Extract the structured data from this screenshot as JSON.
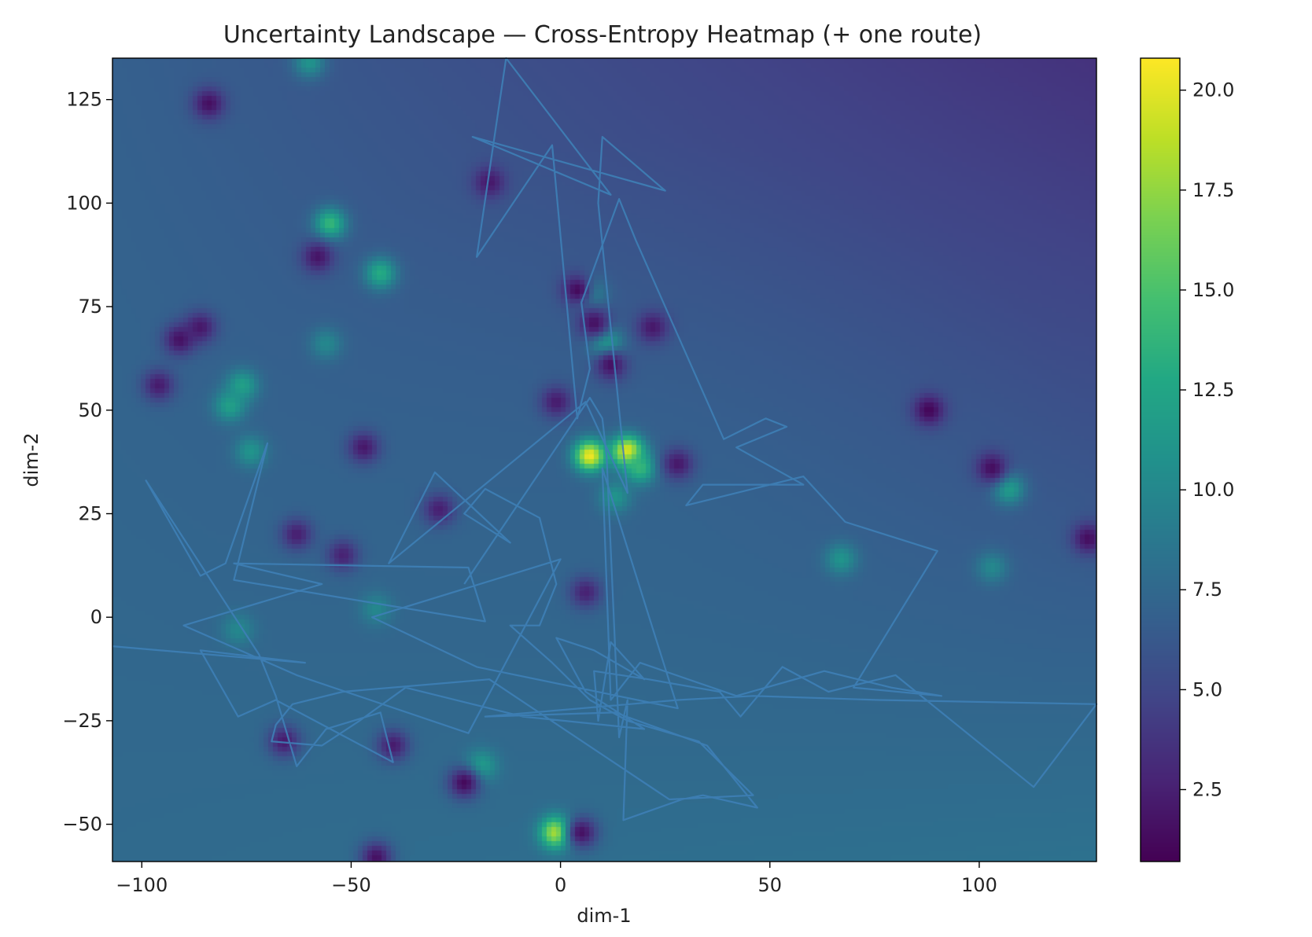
{
  "chart_data": {
    "type": "heatmap",
    "title": "Uncertainty Landscape — Cross-Entropy Heatmap (+ one route)",
    "xlabel": "dim-1",
    "ylabel": "dim-2",
    "xlim": [
      -107,
      128
    ],
    "ylim": [
      -59,
      135
    ],
    "xticks": [
      -100,
      -50,
      0,
      50,
      100
    ],
    "yticks": [
      -50,
      -25,
      0,
      25,
      50,
      75,
      100,
      125
    ],
    "xtick_labels": [
      "−100",
      "−50",
      "0",
      "50",
      "100"
    ],
    "ytick_labels": [
      "−50",
      "−25",
      "0",
      "25",
      "50",
      "75",
      "100",
      "125"
    ],
    "colorbar": {
      "colormap": "viridis",
      "range": [
        0.7,
        20.8
      ],
      "ticks": [
        2.5,
        5.0,
        7.5,
        10.0,
        12.5,
        15.0,
        17.5,
        20.0
      ],
      "tick_labels": [
        "2.5",
        "5.0",
        "7.5",
        "10.0",
        "12.5",
        "15.0",
        "17.5",
        "20.0"
      ]
    },
    "grid": false,
    "heatmap_background": {
      "note_values": "base cross-entropy field, higher toward lower-right, lower toward upper-right",
      "corner_values": {
        "top_left": 6.8,
        "top_right": 3.6,
        "bottom_left": 7.6,
        "bottom_right": 8.2
      },
      "center_value": 7.8
    },
    "hotspots": [
      {
        "x": 7,
        "y": 39,
        "value": 20.5
      },
      {
        "x": 16,
        "y": 40,
        "value": 20.8
      },
      {
        "x": 19,
        "y": 36,
        "value": 14
      },
      {
        "x": 13,
        "y": 29,
        "value": 11
      },
      {
        "x": -55,
        "y": 95,
        "value": 14
      },
      {
        "x": -43,
        "y": 83,
        "value": 13
      },
      {
        "x": 11,
        "y": 66,
        "value": 13
      },
      {
        "x": 7,
        "y": 78,
        "value": 11
      },
      {
        "x": 67,
        "y": 14,
        "value": 11
      },
      {
        "x": 107,
        "y": 31,
        "value": 12
      },
      {
        "x": 103,
        "y": 12,
        "value": 10
      },
      {
        "x": -19,
        "y": -36,
        "value": 12
      },
      {
        "x": -1,
        "y": -52,
        "value": 19
      },
      {
        "x": -60,
        "y": 134,
        "value": 11
      },
      {
        "x": -79,
        "y": 51,
        "value": 12
      },
      {
        "x": -76,
        "y": 56,
        "value": 12
      },
      {
        "x": -74,
        "y": 40,
        "value": 11
      },
      {
        "x": -56,
        "y": 66,
        "value": 10
      },
      {
        "x": -44,
        "y": 2,
        "value": 10
      },
      {
        "x": -77,
        "y": -3,
        "value": 10
      }
    ],
    "coldspots": [
      {
        "x": -84,
        "y": 124,
        "value": 1.5
      },
      {
        "x": -58,
        "y": 87,
        "value": 1.8
      },
      {
        "x": -17,
        "y": 105,
        "value": 2.0
      },
      {
        "x": -86,
        "y": 70,
        "value": 2.0
      },
      {
        "x": -91,
        "y": 67,
        "value": 1.6
      },
      {
        "x": -96,
        "y": 56,
        "value": 2.2
      },
      {
        "x": -47,
        "y": 41,
        "value": 2.0
      },
      {
        "x": 4,
        "y": 79,
        "value": 1.2
      },
      {
        "x": 8,
        "y": 71,
        "value": 1.6
      },
      {
        "x": 22,
        "y": 70,
        "value": 2.0
      },
      {
        "x": 12,
        "y": 61,
        "value": 1.6
      },
      {
        "x": -1,
        "y": 52,
        "value": 2.2
      },
      {
        "x": 28,
        "y": 37,
        "value": 2.0
      },
      {
        "x": 88,
        "y": 50,
        "value": 1.0
      },
      {
        "x": 103,
        "y": 36,
        "value": 1.4
      },
      {
        "x": 126,
        "y": 19,
        "value": 1.4
      },
      {
        "x": -23,
        "y": -40,
        "value": 1.2
      },
      {
        "x": -44,
        "y": -58,
        "value": 1.6
      },
      {
        "x": -40,
        "y": -31,
        "value": 2.2
      },
      {
        "x": -66,
        "y": -30,
        "value": 2.2
      },
      {
        "x": -63,
        "y": 20,
        "value": 2.4
      },
      {
        "x": -29,
        "y": 26,
        "value": 2.4
      },
      {
        "x": 5,
        "y": -52,
        "value": 1.6
      },
      {
        "x": 6,
        "y": 6,
        "value": 2.6
      },
      {
        "x": -52,
        "y": 15,
        "value": 2.6
      }
    ],
    "route": {
      "color": "#3e7fb6",
      "points": [
        [
          -107,
          -7
        ],
        [
          -61,
          -11
        ],
        [
          -86,
          -8
        ],
        [
          -77,
          -24
        ],
        [
          -68,
          -20
        ],
        [
          -40,
          -35
        ],
        [
          -43,
          -23
        ],
        [
          -56,
          -27
        ],
        [
          -63,
          -36
        ],
        [
          -68,
          -19
        ],
        [
          -72,
          -9
        ],
        [
          -99,
          33
        ],
        [
          -86,
          10
        ],
        [
          -80,
          13
        ],
        [
          -70,
          42
        ],
        [
          -78,
          9
        ],
        [
          -18,
          -1
        ],
        [
          -22,
          12
        ],
        [
          -78,
          13
        ],
        [
          -57,
          8
        ],
        [
          -90,
          -2
        ],
        [
          -63,
          -14
        ],
        [
          -22,
          -28
        ],
        [
          0,
          14
        ],
        [
          -45,
          0
        ],
        [
          -20,
          -12
        ],
        [
          28,
          -22
        ],
        [
          10,
          36
        ],
        [
          12,
          -20
        ],
        [
          19,
          -11
        ],
        [
          42,
          -19
        ],
        [
          63,
          -13
        ],
        [
          79,
          -17
        ],
        [
          91,
          -19
        ],
        [
          70,
          -17
        ],
        [
          90,
          16
        ],
        [
          68,
          23
        ],
        [
          58,
          34
        ],
        [
          30,
          27
        ],
        [
          34,
          32
        ],
        [
          58,
          32
        ],
        [
          42,
          41
        ],
        [
          54,
          46
        ],
        [
          49,
          48
        ],
        [
          43,
          45
        ],
        [
          39,
          43
        ],
        [
          18,
          91
        ],
        [
          14,
          101
        ],
        [
          5,
          76
        ],
        [
          7,
          60
        ],
        [
          4,
          48
        ],
        [
          -2,
          114
        ],
        [
          -20,
          87
        ],
        [
          -13,
          135
        ],
        [
          12,
          102
        ],
        [
          -21,
          116
        ],
        [
          25,
          103
        ],
        [
          10,
          116
        ],
        [
          9,
          100
        ],
        [
          16,
          30
        ],
        [
          6,
          52
        ],
        [
          -41,
          13
        ],
        [
          -30,
          35
        ],
        [
          -12,
          18
        ],
        [
          -23,
          25
        ],
        [
          -18,
          31
        ],
        [
          -5,
          24
        ],
        [
          -1,
          8
        ],
        [
          -5,
          -2
        ],
        [
          -12,
          -2
        ],
        [
          -2,
          -11
        ],
        [
          7,
          -20
        ],
        [
          16,
          -25
        ],
        [
          33,
          -30
        ],
        [
          46,
          -43
        ],
        [
          26,
          -44
        ],
        [
          -17,
          -15
        ],
        [
          -52,
          -18
        ],
        [
          -64,
          -21
        ],
        [
          -68,
          -26
        ],
        [
          -69,
          -30
        ],
        [
          -57,
          -31
        ],
        [
          -48,
          -25
        ],
        [
          -37,
          -17
        ],
        [
          -9,
          -24
        ],
        [
          20,
          -27
        ],
        [
          6,
          -18
        ],
        [
          -1,
          -5
        ],
        [
          8,
          -8
        ],
        [
          20,
          -15
        ],
        [
          12,
          -6
        ],
        [
          9,
          -25
        ],
        [
          8,
          -13
        ],
        [
          21,
          -15
        ],
        [
          38,
          -18
        ],
        [
          43,
          -24
        ],
        [
          53,
          -12
        ],
        [
          64,
          -18
        ],
        [
          80,
          -14
        ],
        [
          113,
          -41
        ],
        [
          128,
          -21
        ],
        [
          76,
          -20
        ],
        [
          46,
          -19
        ],
        [
          28,
          -20
        ],
        [
          -18,
          -24
        ],
        [
          13,
          -23
        ],
        [
          35,
          -31
        ],
        [
          47,
          -46
        ],
        [
          34,
          -43
        ],
        [
          29,
          -44
        ],
        [
          15,
          -49
        ],
        [
          16,
          -20
        ],
        [
          14,
          -29
        ],
        [
          11,
          39
        ],
        [
          10,
          48
        ],
        [
          7,
          53
        ],
        [
          -23,
          8
        ]
      ]
    }
  }
}
